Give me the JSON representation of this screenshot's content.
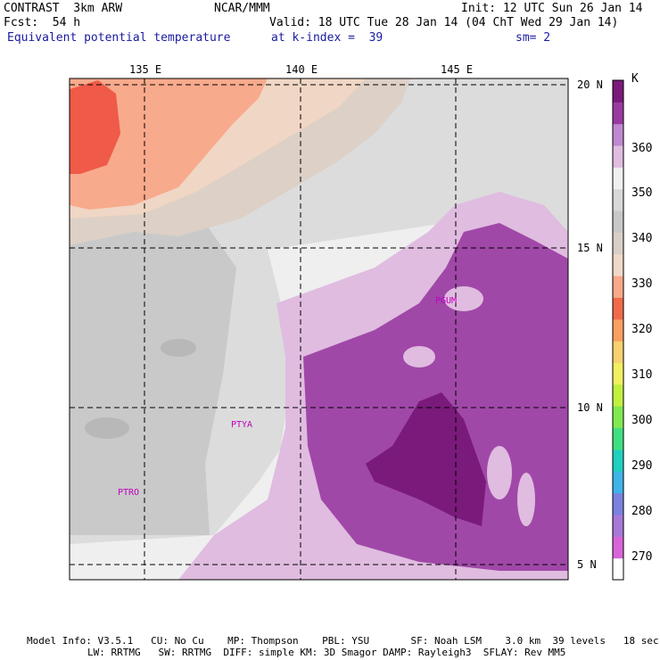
{
  "header": {
    "model": "CONTRAST  3km ARW",
    "center": "NCAR/MMM",
    "init": "Init: 12 UTC Sun 26 Jan 14",
    "fcst": "Fcst:  54 h",
    "valid": "Valid: 18 UTC Tue 28 Jan 14 (04 ChT Wed 29 Jan 14)",
    "field": "Equivalent potential temperature",
    "level": "at k-index =  39",
    "smooth": "sm= 2"
  },
  "map": {
    "lon_labels": [
      "135 E",
      "140 E",
      "145 E"
    ],
    "lat_labels": [
      "20 N",
      "15 N",
      "10 N",
      "5 N"
    ],
    "stations": [
      "PGUM",
      "PTYA",
      "PTRO"
    ]
  },
  "colorbar": {
    "unit": "K",
    "ticks": [
      "360",
      "350",
      "340",
      "330",
      "320",
      "310",
      "300",
      "290",
      "280",
      "270"
    ],
    "colors": [
      "#ffffff",
      "#d865d8",
      "#a878d8",
      "#7a82e0",
      "#3eb4e8",
      "#20d0c0",
      "#40e080",
      "#80e850",
      "#c0f040",
      "#f0f060",
      "#f8d070",
      "#f8a060",
      "#f06a4a",
      "#f8a888",
      "#f0d8c8",
      "#d8cfc8",
      "#c8c8c8",
      "#d8d8d8",
      "#f0f0f0",
      "#e0bce0",
      "#c088d0",
      "#9a3aa0",
      "#7a1a7a"
    ]
  },
  "footer": {
    "line1": "Model Info: V3.5.1   CU: No Cu    MP: Thompson    PBL: YSU       SF: Noah LSM    3.0 km  39 levels   18 sec",
    "line2": "LW: RRTMG   SW: RRTMG  DIFF: simple KM: 3D Smagor DAMP: Rayleigh3  SFLAY: Rev MM5"
  }
}
